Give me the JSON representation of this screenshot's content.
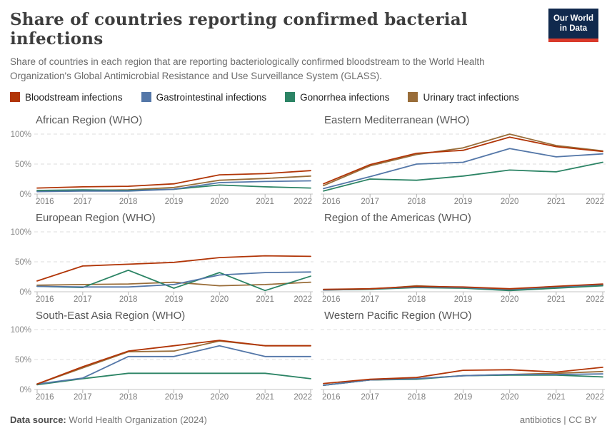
{
  "header": {
    "title": "Share of countries reporting confirmed bacterial infections",
    "subtitle": "Share of countries in each region that are reporting bacteriologically confirmed bloodstream to the World Health Organization's Global Antimicrobial Resistance and Use Surveillance System (GLASS).",
    "logo": {
      "line1": "Our World",
      "line2": "in Data",
      "bg_color": "#10294d",
      "bar_color": "#d93a2b"
    }
  },
  "legend": [
    {
      "key": "bloodstream",
      "label": "Bloodstream infections",
      "color": "#b13507"
    },
    {
      "key": "gastrointestinal",
      "label": "Gastrointestinal infections",
      "color": "#5477a8"
    },
    {
      "key": "gonorrhea",
      "label": "Gonorrhea infections",
      "color": "#2c8465"
    },
    {
      "key": "urinary",
      "label": "Urinary tract infections",
      "color": "#996d39"
    }
  ],
  "chart_data": {
    "type": "line",
    "x": [
      2016,
      2017,
      2018,
      2019,
      2020,
      2021,
      2022
    ],
    "ylim": [
      0,
      100
    ],
    "unit": "%",
    "y_gridlines": [
      100,
      50,
      0
    ],
    "y_tick_labels": [
      "100%",
      "50%",
      "0%"
    ],
    "legend_position": "top",
    "grid": "dashed horizontal at 50% and 100%, solid axis at 0%",
    "panels": [
      {
        "title": "African Region (WHO)",
        "y_axis_labels": true,
        "series": [
          {
            "name": "Bloodstream infections",
            "key": "bloodstream",
            "values": [
              10,
              12,
              13,
              17,
              32,
              34,
              39
            ]
          },
          {
            "name": "Gastrointestinal infections",
            "key": "gastrointestinal",
            "values": [
              4,
              5,
              5,
              8,
              19,
              21,
              22
            ]
          },
          {
            "name": "Gonorrhea infections",
            "key": "gonorrhea",
            "values": [
              6,
              7,
              6,
              8,
              15,
              12,
              10
            ]
          },
          {
            "name": "Urinary tract infections",
            "key": "urinary",
            "values": [
              6,
              6,
              7,
              11,
              23,
              26,
              30
            ]
          }
        ]
      },
      {
        "title": "Eastern Mediterranean (WHO)",
        "y_axis_labels": false,
        "series": [
          {
            "name": "Bloodstream infections",
            "key": "bloodstream",
            "values": [
              17,
              49,
              68,
              73,
              95,
              79,
              71
            ]
          },
          {
            "name": "Gastrointestinal infections",
            "key": "gastrointestinal",
            "values": [
              9,
              29,
              50,
              53,
              76,
              62,
              67
            ]
          },
          {
            "name": "Gonorrhea infections",
            "key": "gonorrhea",
            "values": [
              5,
              25,
              23,
              30,
              40,
              37,
              53
            ]
          },
          {
            "name": "Urinary tract infections",
            "key": "urinary",
            "values": [
              14,
              47,
              66,
              77,
              100,
              81,
              72
            ]
          }
        ]
      },
      {
        "title": "European Region (WHO)",
        "y_axis_labels": true,
        "series": [
          {
            "name": "Bloodstream infections",
            "key": "bloodstream",
            "values": [
              18,
              43,
              46,
              49,
              57,
              60,
              59
            ]
          },
          {
            "name": "Gastrointestinal infections",
            "key": "gastrointestinal",
            "values": [
              9,
              8,
              8,
              12,
              28,
              32,
              33
            ]
          },
          {
            "name": "Gonorrhea infections",
            "key": "gonorrhea",
            "values": [
              9,
              7,
              36,
              6,
              32,
              2,
              26
            ]
          },
          {
            "name": "Urinary tract infections",
            "key": "urinary",
            "values": [
              11,
              12,
              13,
              16,
              10,
              12,
              16
            ]
          }
        ]
      },
      {
        "title": "Region of the Americas (WHO)",
        "y_axis_labels": false,
        "series": [
          {
            "name": "Bloodstream infections",
            "key": "bloodstream",
            "values": [
              4,
              5,
              9,
              8,
              5,
              9,
              13
            ]
          },
          {
            "name": "Gastrointestinal infections",
            "key": "gastrointestinal",
            "values": [
              3,
              5,
              8,
              7,
              4,
              8,
              12
            ]
          },
          {
            "name": "Gonorrhea infections",
            "key": "gonorrhea",
            "values": [
              3,
              4,
              7,
              6,
              2,
              6,
              10
            ]
          },
          {
            "name": "Urinary tract infections",
            "key": "urinary",
            "values": [
              3,
              4,
              10,
              7,
              4,
              7,
              11
            ]
          }
        ]
      },
      {
        "title": "South-East Asia Region (WHO)",
        "y_axis_labels": true,
        "series": [
          {
            "name": "Bloodstream infections",
            "key": "bloodstream",
            "values": [
              9,
              38,
              64,
              73,
              82,
              73,
              73
            ]
          },
          {
            "name": "Gastrointestinal infections",
            "key": "gastrointestinal",
            "values": [
              9,
              19,
              55,
              55,
              73,
              55,
              55
            ]
          },
          {
            "name": "Gonorrhea infections",
            "key": "gonorrhea",
            "values": [
              8,
              18,
              27,
              27,
              27,
              27,
              18
            ]
          },
          {
            "name": "Urinary tract infections",
            "key": "urinary",
            "values": [
              9,
              36,
              63,
              64,
              81,
              73,
              73
            ]
          }
        ]
      },
      {
        "title": "Western Pacific Region (WHO)",
        "y_axis_labels": false,
        "series": [
          {
            "name": "Bloodstream infections",
            "key": "bloodstream",
            "values": [
              10,
              17,
              20,
              32,
              33,
              29,
              37
            ]
          },
          {
            "name": "Gastrointestinal infections",
            "key": "gastrointestinal",
            "values": [
              7,
              16,
              18,
              23,
              25,
              25,
              26
            ]
          },
          {
            "name": "Gonorrhea infections",
            "key": "gonorrhea",
            "values": [
              7,
              16,
              17,
              23,
              24,
              24,
              21
            ]
          },
          {
            "name": "Urinary tract infections",
            "key": "urinary",
            "values": [
              7,
              16,
              18,
              23,
              25,
              27,
              30
            ]
          }
        ]
      }
    ]
  },
  "footer": {
    "source_label": "Data source:",
    "source_text": "World Health Organization (2024)",
    "right_text": "antibiotics | CC BY"
  }
}
